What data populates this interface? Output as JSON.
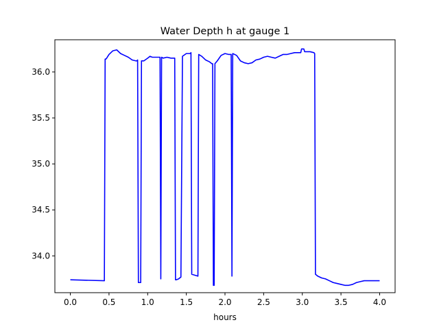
{
  "chart_data": {
    "type": "line",
    "title": "Water Depth h at gauge 1",
    "xlabel": "hours",
    "ylabel": "",
    "xlim": [
      -0.2,
      4.2
    ],
    "ylim": [
      33.6,
      36.35
    ],
    "xticks": [
      0.0,
      0.5,
      1.0,
      1.5,
      2.0,
      2.5,
      3.0,
      3.5,
      4.0
    ],
    "xtick_labels": [
      "0.0",
      "0.5",
      "1.0",
      "1.5",
      "2.0",
      "2.5",
      "3.0",
      "3.5",
      "4.0"
    ],
    "yticks": [
      34.0,
      34.5,
      35.0,
      35.5,
      36.0
    ],
    "ytick_labels": [
      "34.0",
      "34.5",
      "35.0",
      "35.5",
      "36.0"
    ],
    "grid": false,
    "series": [
      {
        "color": "#0000ff",
        "x": [
          0.0,
          0.44,
          0.45,
          0.46,
          0.47,
          0.5,
          0.55,
          0.6,
          0.65,
          0.7,
          0.75,
          0.8,
          0.85,
          0.86,
          0.87,
          0.88,
          0.91,
          0.92,
          0.95,
          1.0,
          1.03,
          1.06,
          1.1,
          1.15,
          1.16,
          1.17,
          1.18,
          1.2,
          1.25,
          1.3,
          1.35,
          1.36,
          1.37,
          1.4,
          1.43,
          1.45,
          1.5,
          1.55,
          1.56,
          1.57,
          1.65,
          1.66,
          1.7,
          1.75,
          1.8,
          1.83,
          1.84,
          1.85,
          1.86,
          1.87,
          1.9,
          1.95,
          2.0,
          2.05,
          2.08,
          2.09,
          2.1,
          2.15,
          2.2,
          2.25,
          2.3,
          2.35,
          2.4,
          2.45,
          2.5,
          2.55,
          2.6,
          2.65,
          2.7,
          2.75,
          2.8,
          2.85,
          2.9,
          2.95,
          2.98,
          2.99,
          3.02,
          3.03,
          3.1,
          3.15,
          3.16,
          3.17,
          3.2,
          3.25,
          3.3,
          3.35,
          3.4,
          3.45,
          3.5,
          3.55,
          3.6,
          3.65,
          3.7,
          3.75,
          3.8,
          3.85,
          3.9,
          3.95,
          4.0
        ],
        "y": [
          33.74,
          33.73,
          36.14,
          36.14,
          36.15,
          36.19,
          36.23,
          36.24,
          36.2,
          36.18,
          36.16,
          36.13,
          36.12,
          36.12,
          36.13,
          33.71,
          33.71,
          36.12,
          36.12,
          36.15,
          36.17,
          36.16,
          36.16,
          36.16,
          36.16,
          33.75,
          36.16,
          36.15,
          36.16,
          36.15,
          36.15,
          33.74,
          33.74,
          33.75,
          33.77,
          36.17,
          36.2,
          36.2,
          36.21,
          33.8,
          33.78,
          36.19,
          36.17,
          36.13,
          36.11,
          36.09,
          36.09,
          33.68,
          33.68,
          36.09,
          36.12,
          36.18,
          36.2,
          36.19,
          36.19,
          33.78,
          36.2,
          36.18,
          36.12,
          36.1,
          36.09,
          36.1,
          36.13,
          36.14,
          36.16,
          36.17,
          36.16,
          36.15,
          36.17,
          36.19,
          36.19,
          36.2,
          36.21,
          36.21,
          36.21,
          36.25,
          36.25,
          36.22,
          36.22,
          36.21,
          36.2,
          33.8,
          33.78,
          33.76,
          33.75,
          33.73,
          33.71,
          33.7,
          33.69,
          33.68,
          33.68,
          33.69,
          33.71,
          33.72,
          33.73,
          33.73,
          33.73,
          33.73,
          33.73
        ]
      }
    ]
  }
}
